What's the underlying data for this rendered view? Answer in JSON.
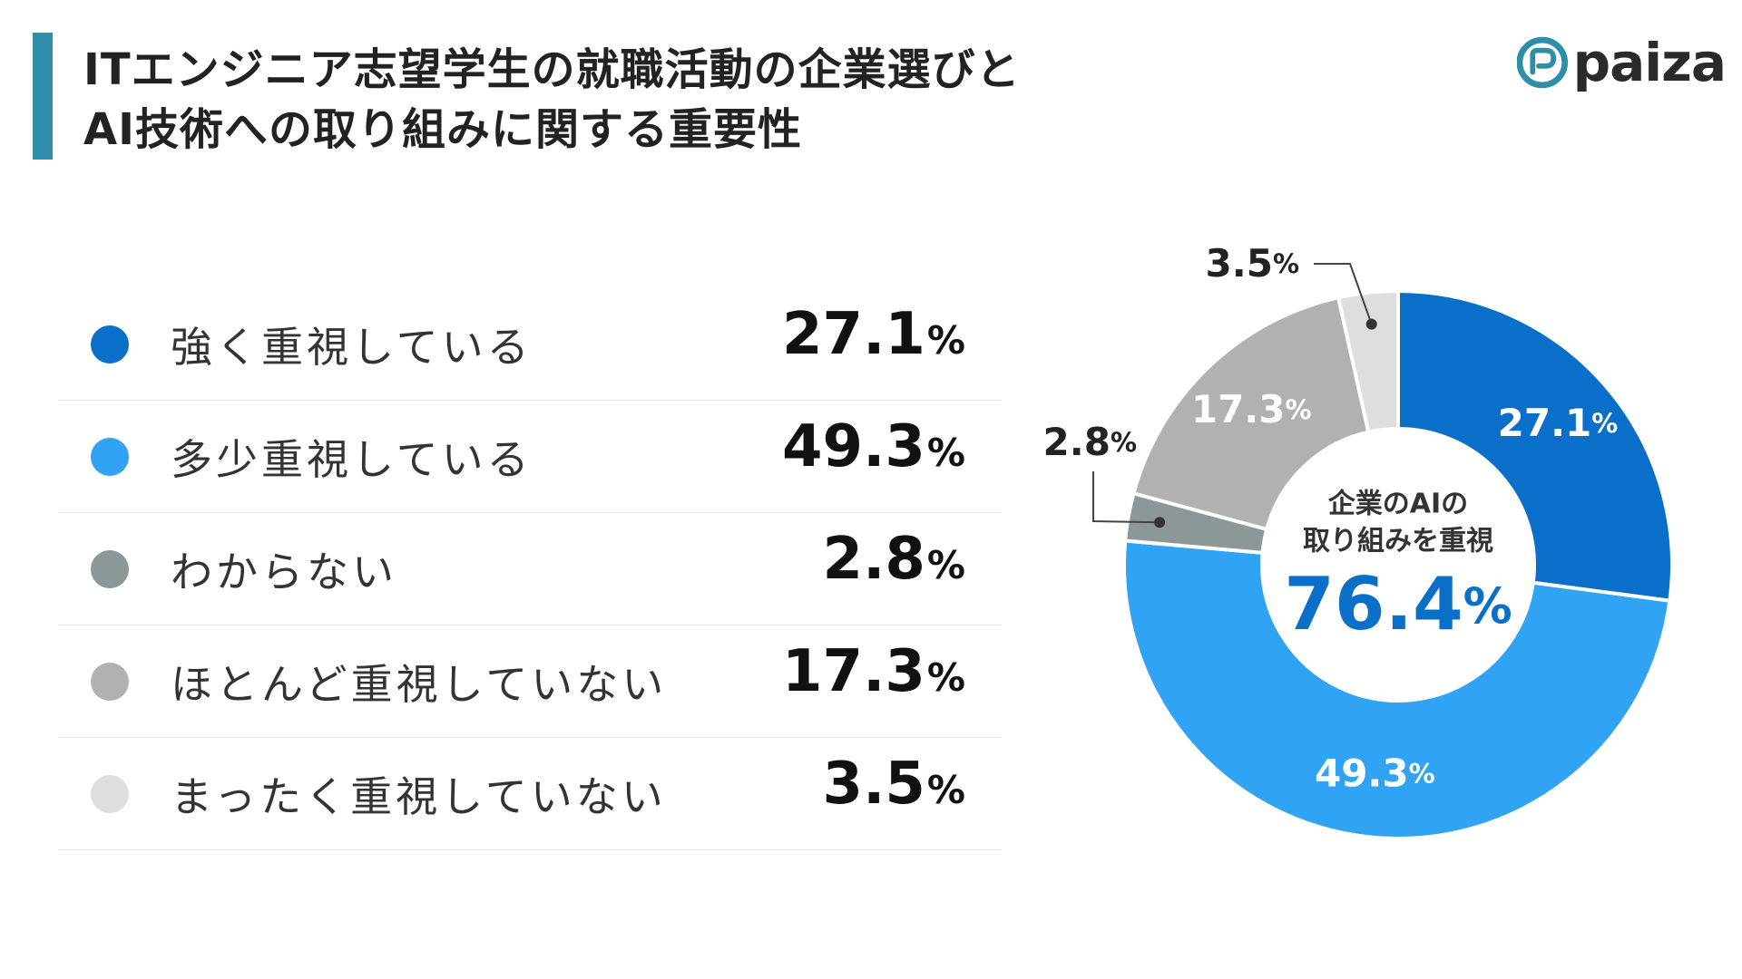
{
  "title": {
    "line1": "ITエンジニア志望学生の就職活動の企業選びと",
    "line2": "AI技術への取り組みに関する重要性"
  },
  "logo": {
    "text": "paiza"
  },
  "center": {
    "line1": "企業のAIの",
    "line2": "取り組みを重視",
    "value": "76.4",
    "unit": "%"
  },
  "chart_data": {
    "type": "pie",
    "categories": [
      "強く重視している",
      "多少重視している",
      "わからない",
      "ほとんど重視していない",
      "まったく重視していない"
    ],
    "values": [
      27.1,
      49.3,
      2.8,
      17.3,
      3.5
    ],
    "unit": "%",
    "colors": [
      "#0a6fc9",
      "#30a3f4",
      "#8c9898",
      "#b1b1b1",
      "#dedede"
    ],
    "label_colors": [
      "#ffffff",
      "#ffffff",
      "#222222",
      "#ffffff",
      "#222222"
    ],
    "title": "ITエンジニア志望学生の就職活動の企業選びとAI技術への取り組みに関する重要性"
  }
}
